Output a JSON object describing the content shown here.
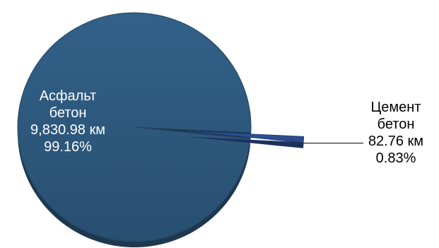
{
  "chart_data": {
    "type": "pie",
    "style": "3d-exploded",
    "unit": "км",
    "slices": [
      {
        "name_lines": [
          "Асфальт",
          "бетон"
        ],
        "value": 9830.98,
        "value_label": "9,830.98 км",
        "percent": 99.16,
        "percent_label": "99.16%",
        "color": "#2e5a7f",
        "label_color": "#ffffff",
        "exploded": false
      },
      {
        "name_lines": [
          "Цемент",
          "бетон"
        ],
        "value": 82.76,
        "value_label": "82.76 км",
        "percent": 0.83,
        "percent_label": "0.83%",
        "color": "#2d4f96",
        "label_color": "#000000",
        "exploded": true
      }
    ]
  }
}
